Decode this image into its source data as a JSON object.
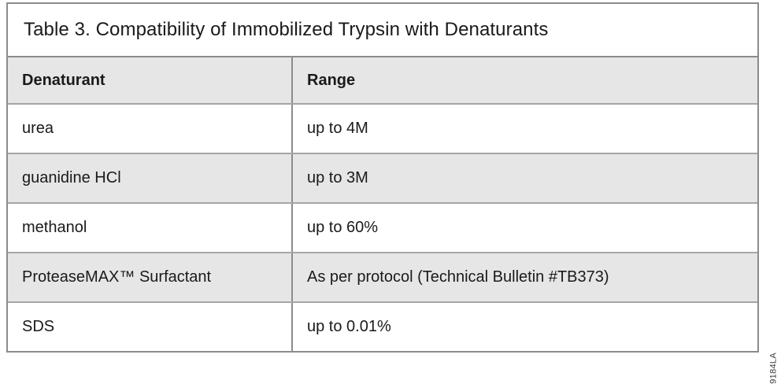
{
  "table": {
    "title": "Table 3. Compatibility of Immobilized Trypsin with Denaturants",
    "columns": [
      {
        "label": "Denaturant"
      },
      {
        "label": "Range"
      }
    ],
    "rows": [
      {
        "denaturant": "urea",
        "range": "up to 4M"
      },
      {
        "denaturant": "guanidine HCl",
        "range": "up to 3M"
      },
      {
        "denaturant": "methanol",
        "range": "up to 60%"
      },
      {
        "denaturant": "ProteaseMAX™ Surfactant",
        "range": "As per protocol (Technical Bulletin #TB373)"
      },
      {
        "denaturant": "SDS",
        "range": "up to 0.01%"
      }
    ]
  },
  "figure_number": "9184LA",
  "colors": {
    "row_shade": "#e6e6e6",
    "border_outer": "#8c8c8c",
    "border_inner": "#a6a6a6",
    "text": "#1a1a1a",
    "fignum": "#3a3a3a"
  }
}
